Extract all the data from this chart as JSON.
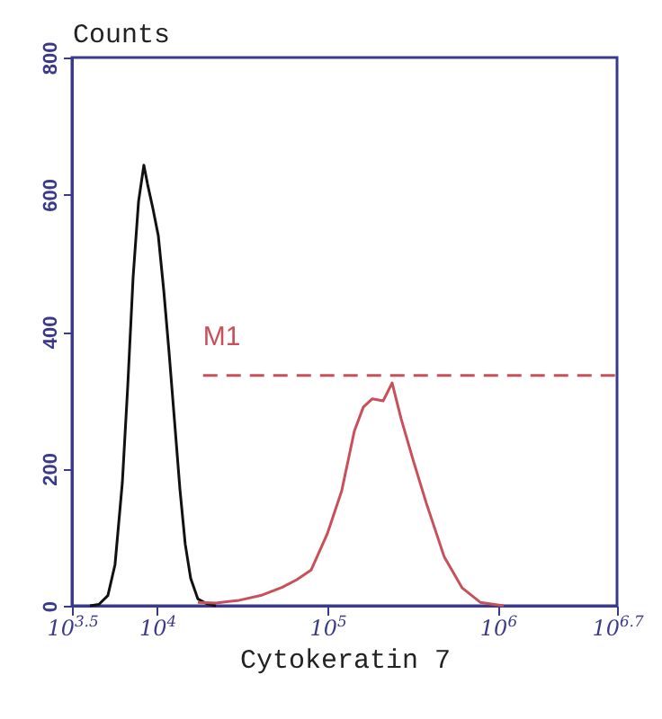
{
  "chart_data": {
    "type": "line",
    "xlabel": "Cytokeratin 7",
    "ylabel": "Counts",
    "log": "x",
    "xlim": [
      3162.28,
      5011872
    ],
    "ylim": [
      0,
      800
    ],
    "xticks": [
      {
        "value": 3162.28,
        "label": "10$^{3.5}$"
      },
      {
        "value": 10000,
        "label": "10$^{4}$"
      },
      {
        "value": 100000,
        "label": "10$^{5}$"
      },
      {
        "value": 1000000,
        "label": "10$^{6}$"
      },
      {
        "value": 5011872,
        "label": "10$^{6.7}$"
      }
    ],
    "yticks": [
      0,
      200,
      400,
      600,
      800
    ],
    "grid": false,
    "legend": false,
    "marker": "none",
    "series": [
      {
        "color": "#111111",
        "line_style": "solid",
        "x": [
          4036,
          4550,
          5140,
          5660,
          6250,
          6720,
          7230,
          7780,
          8360,
          8790,
          9440,
          10160,
          10940,
          11750,
          12650,
          13610,
          14620,
          15740,
          17340,
          19590,
          22130
        ],
        "values": [
          0,
          2,
          15,
          60,
          180,
          320,
          480,
          590,
          643,
          615,
          580,
          540,
          460,
          370,
          270,
          170,
          90,
          40,
          10,
          3,
          0
        ]
      },
      {
        "color": "#c8505a",
        "line_style": "solid",
        "x": [
          17340,
          22130,
          30340,
          40640,
          54330,
          66070,
          80170,
          99770,
          121300,
          143900,
          162500,
          183400,
          212300,
          239700,
          270600,
          320700,
          380200,
          485300,
          618000,
          788900,
          1081000
        ],
        "values": [
          5,
          4,
          8,
          15,
          27,
          38,
          52,
          105,
          168,
          255,
          290,
          302,
          299,
          325,
          273,
          210,
          150,
          71,
          26,
          5,
          0
        ]
      },
      {
        "color": "#c8505a",
        "line_style": "dashed",
        "x": [
          18600,
          5011872
        ],
        "values": [
          336,
          336
        ]
      }
    ],
    "annotations": [
      {
        "text": "M1",
        "x": 18600,
        "y": 336
      }
    ]
  }
}
